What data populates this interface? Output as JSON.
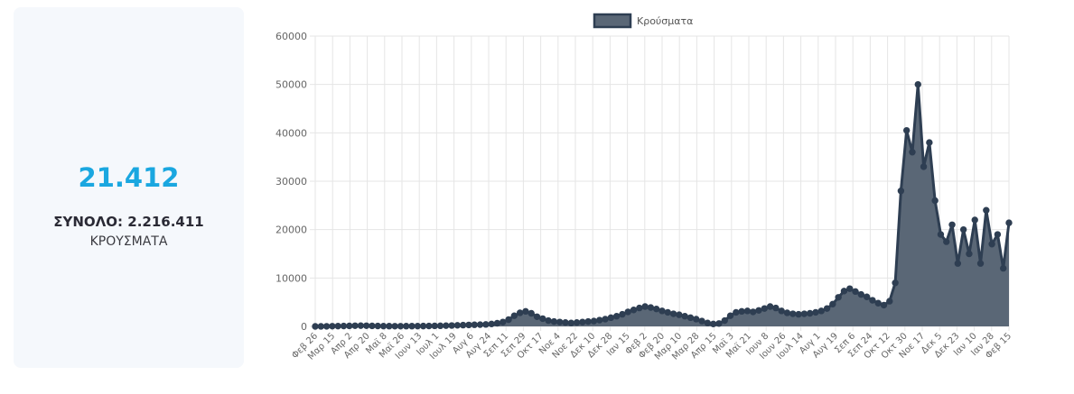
{
  "summary": {
    "today_value": "21.412",
    "total_line": "ΣΥΝΟΛΟ: 2.216.411",
    "caption": "ΚΡΟΥΣΜΑΤΑ"
  },
  "colors": {
    "accent": "#1aa7e0",
    "series_fill": "#5a6776",
    "series_line": "#2e3e52",
    "card_bg": "#f5f8fc",
    "grid": "#e5e5e5"
  },
  "chart_data": {
    "type": "area",
    "title": "",
    "xlabel": "",
    "ylabel": "",
    "ylim": [
      0,
      60000
    ],
    "y_ticks": [
      0,
      10000,
      20000,
      30000,
      40000,
      50000,
      60000
    ],
    "grid": true,
    "legend_position": "top-center",
    "x_tick_labels": [
      "Φεβ 26",
      "Μαρ 15",
      "Απρ 2",
      "Απρ 20",
      "Μαϊ 8",
      "Μαϊ 26",
      "Ιουν 13",
      "Ιουλ 1",
      "Ιουλ 19",
      "Αυγ 6",
      "Αυγ 24",
      "Σεπ 11",
      "Σεπ 29",
      "Οκτ 17",
      "Νοε 4",
      "Νοε 22",
      "Δεκ 10",
      "Δεκ 28",
      "Ιαν 15",
      "Φεβ 2",
      "Φεβ 20",
      "Μαρ 10",
      "Μαρ 28",
      "Απρ 15",
      "Μαϊ 3",
      "Μαϊ 21",
      "Ιουν 8",
      "Ιουν 26",
      "Ιουλ 14",
      "Αυγ 1",
      "Αυγ 19",
      "Σεπ 6",
      "Σεπ 24",
      "Οκτ 12",
      "Οκτ 30",
      "Νοε 17",
      "Δεκ 5",
      "Δεκ 23",
      "Ιαν 10",
      "Ιαν 28",
      "Φεβ 15"
    ],
    "series": [
      {
        "name": "Κρούσματα",
        "values": [
          0,
          10,
          20,
          40,
          60,
          80,
          100,
          130,
          150,
          130,
          100,
          80,
          60,
          50,
          40,
          40,
          50,
          50,
          60,
          70,
          80,
          100,
          120,
          150,
          180,
          220,
          260,
          300,
          330,
          360,
          400,
          500,
          650,
          900,
          1400,
          2200,
          2800,
          3100,
          2700,
          2000,
          1600,
          1200,
          1000,
          900,
          800,
          700,
          800,
          900,
          1000,
          1100,
          1300,
          1500,
          1800,
          2100,
          2500,
          3000,
          3400,
          3800,
          4100,
          3900,
          3600,
          3200,
          2900,
          2600,
          2400,
          2100,
          1800,
          1500,
          1100,
          700,
          500,
          600,
          1200,
          2200,
          2900,
          3100,
          3200,
          3000,
          3300,
          3700,
          4100,
          3800,
          3200,
          2800,
          2600,
          2500,
          2600,
          2700,
          2900,
          3200,
          3700,
          4600,
          6000,
          7300,
          7800,
          7200,
          6600,
          6100,
          5400,
          4800,
          4400,
          5200,
          9000,
          28000,
          40500,
          36000,
          50000,
          33000,
          38000,
          26000,
          19000,
          17500,
          21000,
          13000,
          20000,
          15000,
          22000,
          13000,
          24000,
          17000,
          19000,
          12000,
          21412
        ]
      }
    ]
  }
}
